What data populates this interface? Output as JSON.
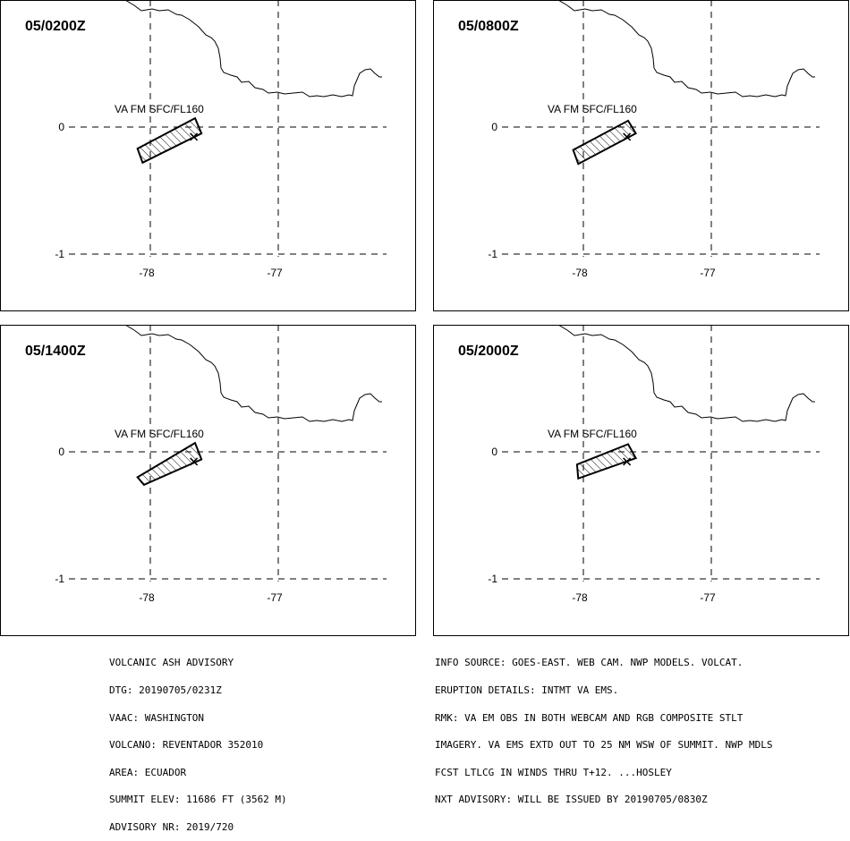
{
  "panels": [
    {
      "title": "05/0200Z",
      "label": "VA FM SFC/FL160",
      "polygon": [
        [
          -77.65,
          0.07
        ],
        [
          -77.6,
          -0.05
        ],
        [
          -78.06,
          -0.28
        ],
        [
          -78.1,
          -0.17
        ]
      ]
    },
    {
      "title": "05/0800Z",
      "label": "VA FM SFC/FL160",
      "polygon": [
        [
          -77.65,
          0.05
        ],
        [
          -77.59,
          -0.05
        ],
        [
          -78.04,
          -0.29
        ],
        [
          -78.08,
          -0.18
        ]
      ]
    },
    {
      "title": "05/1400Z",
      "label": "VA FM SFC/FL160",
      "polygon": [
        [
          -77.65,
          0.07
        ],
        [
          -77.6,
          -0.06
        ],
        [
          -78.05,
          -0.26
        ],
        [
          -78.1,
          -0.2
        ]
      ]
    },
    {
      "title": "05/2000Z",
      "label": "VA FM SFC/FL160",
      "polygon": [
        [
          -77.65,
          0.06
        ],
        [
          -77.59,
          -0.05
        ],
        [
          -78.04,
          -0.21
        ],
        [
          -78.05,
          -0.1
        ]
      ]
    }
  ],
  "axes": {
    "lon_ticks": [
      "-78",
      "-77"
    ],
    "lat_ticks": [
      "0",
      "-1"
    ]
  },
  "volcano": {
    "lon": -77.66,
    "lat": -0.077
  },
  "advisory_left": [
    "VOLCANIC ASH ADVISORY",
    "DTG: 20190705/0231Z",
    "VAAC: WASHINGTON",
    "VOLCANO: REVENTADOR 352010",
    "AREA: ECUADOR",
    "SUMMIT ELEV: 11686 FT (3562 M)",
    "ADVISORY NR: 2019/720"
  ],
  "advisory_right": [
    "INFO SOURCE: GOES-EAST. WEB CAM. NWP MODELS. VOLCAT.",
    "ERUPTION DETAILS: INTMT VA EMS.",
    "RMK: VA EM OBS IN BOTH WEBCAM AND RGB COMPOSITE STLT",
    "IMAGERY. VA EMS EXTD OUT TO 25 NM WSW OF SUMMIT. NWP MDLS",
    "FCST LTLCG IN WINDS THRU T+12. ...HOSLEY",
    "NXT ADVISORY: WILL BE ISSUED BY 20190705/0830Z"
  ]
}
